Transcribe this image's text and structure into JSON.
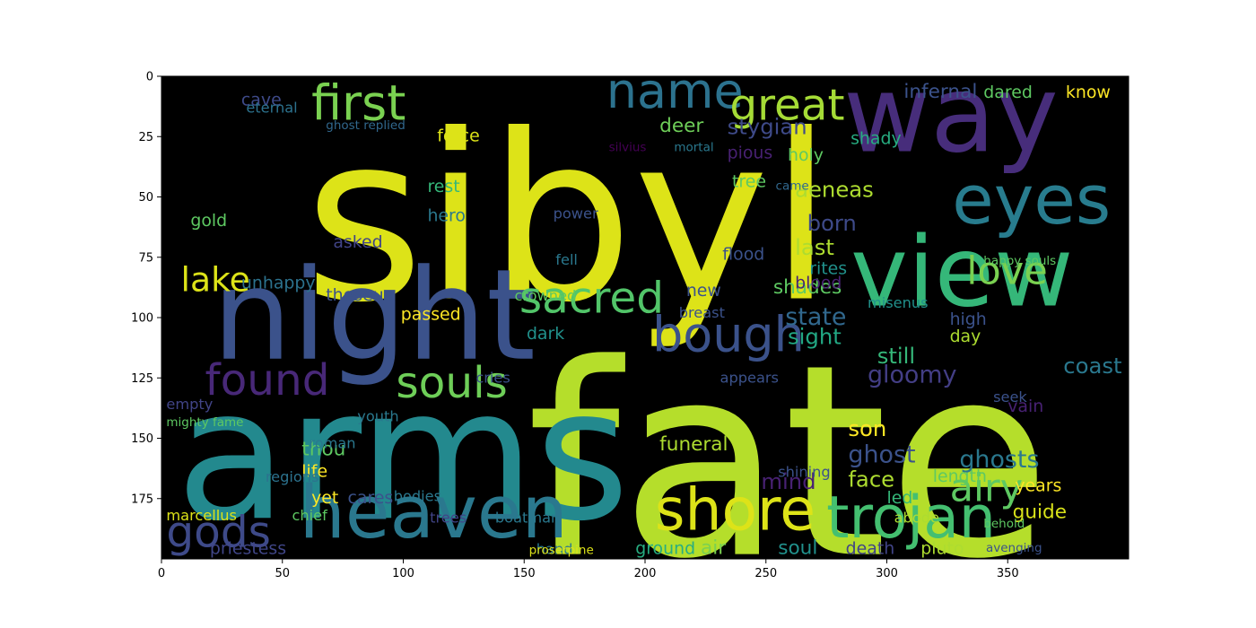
{
  "chart_data": {
    "type": "wordcloud",
    "xlim": [
      0,
      400
    ],
    "ylim": [
      200,
      0
    ],
    "xticks": [
      0,
      50,
      100,
      150,
      200,
      250,
      300,
      350
    ],
    "yticks": [
      0,
      25,
      50,
      75,
      100,
      125,
      150,
      175
    ],
    "background": "#000000",
    "palette": [
      "#440154",
      "#3b528b",
      "#21918c",
      "#5ec962",
      "#fde725"
    ],
    "words": [
      {
        "text": "sibyl",
        "x": 59,
        "y": 92,
        "size": 95,
        "color": "#dde318"
      },
      {
        "text": "fate",
        "x": 151,
        "y": 198,
        "size": 110,
        "color": "#b5de2b"
      },
      {
        "text": "arms",
        "x": 6,
        "y": 183,
        "size": 75,
        "color": "#23898e"
      },
      {
        "text": "night",
        "x": 21,
        "y": 117,
        "size": 52,
        "color": "#3b528b"
      },
      {
        "text": "heaven",
        "x": 57,
        "y": 191,
        "size": 30,
        "color": "#2a788e"
      },
      {
        "text": "way",
        "x": 282,
        "y": 31,
        "size": 44,
        "color": "#472d7b"
      },
      {
        "text": "view",
        "x": 285,
        "y": 95,
        "size": 40,
        "color": "#35b779"
      },
      {
        "text": "eyes",
        "x": 327,
        "y": 61,
        "size": 28,
        "color": "#287c8e"
      },
      {
        "text": "trojan",
        "x": 275,
        "y": 191,
        "size": 24,
        "color": "#44bf70"
      },
      {
        "text": "shore",
        "x": 204,
        "y": 188,
        "size": 24,
        "color": "#dde318"
      },
      {
        "text": "first",
        "x": 62,
        "y": 18,
        "size": 20,
        "color": "#7ad151"
      },
      {
        "text": "name",
        "x": 184,
        "y": 13,
        "size": 20,
        "color": "#2c728e"
      },
      {
        "text": "great",
        "x": 235,
        "y": 18,
        "size": 18,
        "color": "#a5db36"
      },
      {
        "text": "sacred",
        "x": 148,
        "y": 98,
        "size": 18,
        "color": "#52c569"
      },
      {
        "text": "bough",
        "x": 203,
        "y": 114,
        "size": 20,
        "color": "#3b528b"
      },
      {
        "text": "found",
        "x": 18,
        "y": 132,
        "size": 18,
        "color": "#482878"
      },
      {
        "text": "souls",
        "x": 97,
        "y": 133,
        "size": 18,
        "color": "#6ece58"
      },
      {
        "text": "gods",
        "x": 2,
        "y": 195,
        "size": 18,
        "color": "#3e4a89"
      },
      {
        "text": "love",
        "x": 333,
        "y": 86,
        "size": 16,
        "color": "#7ad151"
      },
      {
        "text": "airy",
        "x": 326,
        "y": 176,
        "size": 16,
        "color": "#5ec962"
      },
      {
        "text": "lake",
        "x": 8,
        "y": 89,
        "size": 14,
        "color": "#dde318"
      },
      {
        "text": "state",
        "x": 258,
        "y": 103,
        "size": 10,
        "color": "#31688e"
      },
      {
        "text": "sight",
        "x": 259,
        "y": 111,
        "size": 9,
        "color": "#22a884"
      },
      {
        "text": "gloomy",
        "x": 292,
        "y": 127,
        "size": 10,
        "color": "#433e85"
      },
      {
        "text": "still",
        "x": 296,
        "y": 119,
        "size": 9,
        "color": "#35b779"
      },
      {
        "text": "ghost",
        "x": 284,
        "y": 160,
        "size": 10,
        "color": "#3b528b"
      },
      {
        "text": "face",
        "x": 284,
        "y": 170,
        "size": 9,
        "color": "#addc30"
      },
      {
        "text": "ghosts",
        "x": 330,
        "y": 162,
        "size": 10,
        "color": "#2a788e"
      },
      {
        "text": "guide",
        "x": 352,
        "y": 183,
        "size": 8,
        "color": "#d8e219"
      },
      {
        "text": "son",
        "x": 284,
        "y": 149,
        "size": 9,
        "color": "#fde725"
      },
      {
        "text": "mind",
        "x": 248,
        "y": 171,
        "size": 9,
        "color": "#482173"
      },
      {
        "text": "air",
        "x": 223,
        "y": 198,
        "size": 8,
        "color": "#7ad151"
      },
      {
        "text": "soul",
        "x": 255,
        "y": 198,
        "size": 8,
        "color": "#21918c"
      },
      {
        "text": "death",
        "x": 283,
        "y": 198,
        "size": 7,
        "color": "#414487"
      },
      {
        "text": "pluto",
        "x": 314,
        "y": 198,
        "size": 7,
        "color": "#addc30"
      },
      {
        "text": "ground",
        "x": 196,
        "y": 198,
        "size": 7,
        "color": "#27ad81"
      },
      {
        "text": "priestess",
        "x": 20,
        "y": 198,
        "size": 7,
        "color": "#404688"
      },
      {
        "text": "thou",
        "x": 58,
        "y": 157,
        "size": 8,
        "color": "#5ec962"
      },
      {
        "text": "life",
        "x": 58,
        "y": 166,
        "size": 7,
        "color": "#fde725"
      },
      {
        "text": "regions",
        "x": 43,
        "y": 168,
        "size": 6,
        "color": "#2c728e"
      },
      {
        "text": "cave",
        "x": 33,
        "y": 12,
        "size": 7,
        "color": "#3e4a89"
      },
      {
        "text": "unhappy",
        "x": 33,
        "y": 88,
        "size": 7,
        "color": "#2c728e"
      },
      {
        "text": "gold",
        "x": 12,
        "y": 62,
        "size": 7,
        "color": "#5ec962"
      },
      {
        "text": "asked",
        "x": 71,
        "y": 71,
        "size": 7,
        "color": "#414487"
      },
      {
        "text": "theseus",
        "x": 68,
        "y": 93,
        "size": 7,
        "color": "#3b528b"
      },
      {
        "text": "passed",
        "x": 99,
        "y": 101,
        "size": 7,
        "color": "#fde725"
      },
      {
        "text": "aeneas",
        "x": 262,
        "y": 50,
        "size": 9,
        "color": "#addc30"
      },
      {
        "text": "born",
        "x": 267,
        "y": 64,
        "size": 9,
        "color": "#3e4a89"
      },
      {
        "text": "last",
        "x": 262,
        "y": 74,
        "size": 9,
        "color": "#addc30"
      },
      {
        "text": "rites",
        "x": 268,
        "y": 82,
        "size": 7,
        "color": "#21918c"
      },
      {
        "text": "holy",
        "x": 259,
        "y": 35,
        "size": 7,
        "color": "#5ec962"
      },
      {
        "text": "shady",
        "x": 285,
        "y": 28,
        "size": 7,
        "color": "#27ad81"
      },
      {
        "text": "stygian",
        "x": 234,
        "y": 24,
        "size": 9,
        "color": "#3e4a89"
      },
      {
        "text": "pious",
        "x": 234,
        "y": 34,
        "size": 7,
        "color": "#482173"
      },
      {
        "text": "tree",
        "x": 236,
        "y": 46,
        "size": 7,
        "color": "#5ec962"
      },
      {
        "text": "came",
        "x": 254,
        "y": 47,
        "size": 5,
        "color": "#31688e"
      },
      {
        "text": "deer",
        "x": 206,
        "y": 23,
        "size": 8,
        "color": "#6ece58"
      },
      {
        "text": "force",
        "x": 114,
        "y": 27,
        "size": 7,
        "color": "#dde318"
      },
      {
        "text": "rest",
        "x": 110,
        "y": 48,
        "size": 7,
        "color": "#35b779"
      },
      {
        "text": "hero",
        "x": 110,
        "y": 60,
        "size": 7,
        "color": "#2a788e"
      },
      {
        "text": "infernal",
        "x": 307,
        "y": 9,
        "size": 8,
        "color": "#3b528b"
      },
      {
        "text": "dared",
        "x": 340,
        "y": 9,
        "size": 7,
        "color": "#5ec962"
      },
      {
        "text": "know",
        "x": 374,
        "y": 9,
        "size": 7,
        "color": "#fde725"
      },
      {
        "text": "eternal",
        "x": 35,
        "y": 15,
        "size": 6,
        "color": "#2c728e"
      },
      {
        "text": "ghost replied",
        "x": 68,
        "y": 22,
        "size": 5,
        "color": "#31688e"
      },
      {
        "text": "silvius",
        "x": 185,
        "y": 31,
        "size": 5,
        "color": "#440154"
      },
      {
        "text": "mortal",
        "x": 212,
        "y": 31,
        "size": 5,
        "color": "#2a788e"
      },
      {
        "text": "shades",
        "x": 253,
        "y": 90,
        "size": 8,
        "color": "#5ec962"
      },
      {
        "text": "flood",
        "x": 232,
        "y": 76,
        "size": 7,
        "color": "#3b528b"
      },
      {
        "text": "blood",
        "x": 262,
        "y": 88,
        "size": 7,
        "color": "#482173"
      },
      {
        "text": "day",
        "x": 326,
        "y": 110,
        "size": 7,
        "color": "#addc30"
      },
      {
        "text": "high",
        "x": 326,
        "y": 103,
        "size": 7,
        "color": "#3b528b"
      },
      {
        "text": "misenus",
        "x": 292,
        "y": 96,
        "size": 6,
        "color": "#21918c"
      },
      {
        "text": "funeral",
        "x": 206,
        "y": 155,
        "size": 8,
        "color": "#addc30"
      },
      {
        "text": "dark",
        "x": 151,
        "y": 109,
        "size": 7,
        "color": "#21918c"
      },
      {
        "text": "new",
        "x": 217,
        "y": 91,
        "size": 7,
        "color": "#3b528b"
      },
      {
        "text": "cares",
        "x": 77,
        "y": 177,
        "size": 7,
        "color": "#3b528b"
      },
      {
        "text": "yet",
        "x": 62,
        "y": 177,
        "size": 7,
        "color": "#fde725"
      },
      {
        "text": "chief",
        "x": 54,
        "y": 184,
        "size": 6,
        "color": "#5ec962"
      },
      {
        "text": "marcellus",
        "x": 2,
        "y": 184,
        "size": 6,
        "color": "#dde318"
      },
      {
        "text": "trees",
        "x": 111,
        "y": 185,
        "size": 6,
        "color": "#414487"
      },
      {
        "text": "boatman",
        "x": 138,
        "y": 185,
        "size": 6,
        "color": "#2a788e"
      },
      {
        "text": "years",
        "x": 353,
        "y": 172,
        "size": 7,
        "color": "#fde725"
      },
      {
        "text": "length",
        "x": 319,
        "y": 168,
        "size": 7,
        "color": "#5ec962"
      },
      {
        "text": "led",
        "x": 300,
        "y": 177,
        "size": 7,
        "color": "#35b779"
      },
      {
        "text": "abode",
        "x": 303,
        "y": 185,
        "size": 6,
        "color": "#addc30"
      },
      {
        "text": "vain",
        "x": 350,
        "y": 139,
        "size": 7,
        "color": "#482173"
      },
      {
        "text": "coast",
        "x": 373,
        "y": 123,
        "size": 9,
        "color": "#2a788e"
      },
      {
        "text": "empty",
        "x": 2,
        "y": 138,
        "size": 6,
        "color": "#414487"
      },
      {
        "text": "youth",
        "x": 81,
        "y": 143,
        "size": 6,
        "color": "#2a788e"
      },
      {
        "text": "roman",
        "x": 61,
        "y": 154,
        "size": 6,
        "color": "#2a788e"
      },
      {
        "text": "hand",
        "x": 155,
        "y": 198,
        "size": 6,
        "color": "#2a788e"
      },
      {
        "text": "cries",
        "x": 130,
        "y": 127,
        "size": 6,
        "color": "#3b528b"
      },
      {
        "text": "bodies",
        "x": 96,
        "y": 176,
        "size": 6,
        "color": "#2a788e"
      },
      {
        "text": "fell",
        "x": 163,
        "y": 78,
        "size": 6,
        "color": "#2a788e"
      },
      {
        "text": "power",
        "x": 162,
        "y": 59,
        "size": 6,
        "color": "#3b528b"
      },
      {
        "text": "crowned",
        "x": 146,
        "y": 93,
        "size": 6,
        "color": "#5ec962"
      },
      {
        "text": "breast",
        "x": 214,
        "y": 100,
        "size": 6,
        "color": "#3b528b"
      },
      {
        "text": "appears",
        "x": 231,
        "y": 127,
        "size": 6,
        "color": "#3b528b"
      },
      {
        "text": "seek",
        "x": 344,
        "y": 135,
        "size": 6,
        "color": "#3b528b"
      },
      {
        "text": "shining",
        "x": 255,
        "y": 166,
        "size": 6,
        "color": "#3b528b"
      },
      {
        "text": "happy souls",
        "x": 340,
        "y": 78,
        "size": 5,
        "color": "#5ec962"
      },
      {
        "text": "mighty fame",
        "x": 2,
        "y": 145,
        "size": 5,
        "color": "#5ec962"
      },
      {
        "text": "avenging",
        "x": 341,
        "y": 197,
        "size": 5,
        "color": "#3b528b"
      },
      {
        "text": "behold",
        "x": 340,
        "y": 187,
        "size": 5,
        "color": "#5ec962"
      },
      {
        "text": "proserpine",
        "x": 152,
        "y": 198,
        "size": 5,
        "color": "#dde318"
      }
    ]
  }
}
